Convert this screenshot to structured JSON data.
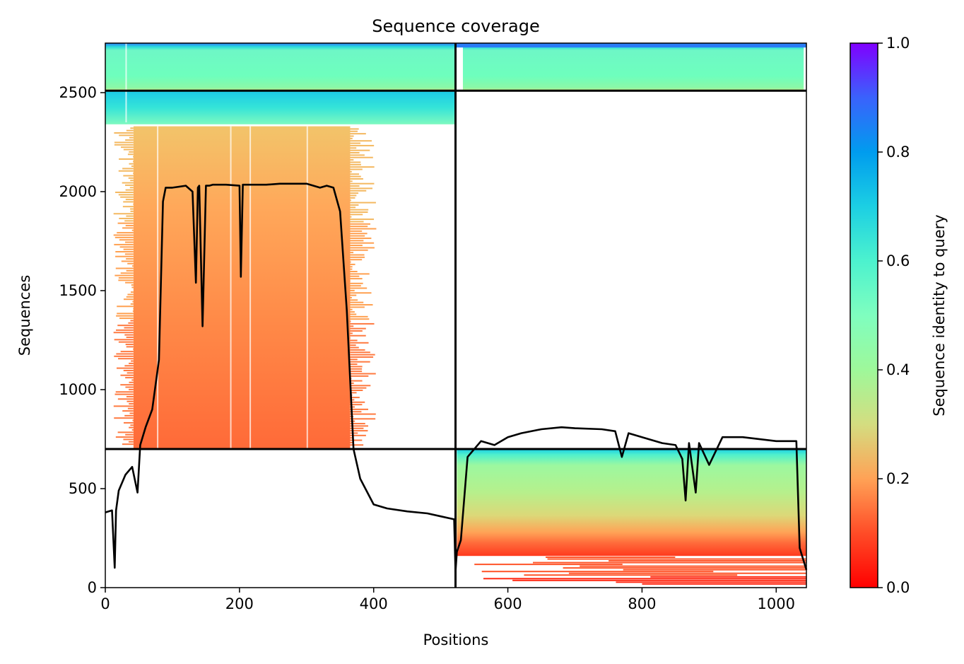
{
  "chart_data": {
    "type": "heatmap",
    "title": "Sequence coverage",
    "xlabel": "Positions",
    "ylabel": "Sequences",
    "xlim": [
      0,
      1045
    ],
    "ylim": [
      0,
      2750
    ],
    "x_ticks": [
      "0",
      "200",
      "400",
      "600",
      "800",
      "1000"
    ],
    "y_ticks": [
      "0",
      "500",
      "1000",
      "1500",
      "2000",
      "2500"
    ],
    "colorbar": {
      "label": "Sequence identity to query",
      "range": [
        0.0,
        1.0
      ],
      "ticks": [
        "0.0",
        "0.2",
        "0.4",
        "0.6",
        "0.8",
        "1.0"
      ],
      "colormap": "rainbow_r"
    },
    "grid": false,
    "chain_boundaries": {
      "x": [
        522
      ],
      "y": [
        700,
        2510
      ]
    },
    "blocks": [
      {
        "x": [
          0,
          522
        ],
        "y": [
          2510,
          2750
        ],
        "identity": 0.55,
        "note": "paired rows"
      },
      {
        "x": [
          522,
          1045
        ],
        "y": [
          2510,
          2750
        ],
        "identity": 0.55
      },
      {
        "x": [
          0,
          522
        ],
        "y": [
          2330,
          2510
        ],
        "identity": 0.7
      },
      {
        "x": [
          25,
          400
        ],
        "y": [
          700,
          2330
        ],
        "identity": 0.2
      },
      {
        "x": [
          522,
          1045
        ],
        "y": [
          0,
          700
        ],
        "identity": 0.4
      }
    ],
    "series": [
      {
        "line": "coverage",
        "color": "#000000",
        "x": [
          0,
          10,
          14,
          16,
          20,
          30,
          40,
          48,
          52,
          60,
          70,
          80,
          86,
          90,
          100,
          120,
          130,
          135,
          138,
          140,
          145,
          150,
          155,
          160,
          180,
          200,
          202,
          205,
          220,
          240,
          260,
          300,
          320,
          330,
          340,
          350,
          360,
          370,
          380,
          400,
          420,
          450,
          480,
          500,
          520,
          522,
          524,
          530,
          540,
          560,
          580,
          600,
          620,
          650,
          680,
          700,
          740,
          760,
          770,
          780,
          800,
          830,
          850,
          860,
          865,
          870,
          880,
          885,
          900,
          920,
          950,
          1000,
          1030,
          1035,
          1045
        ],
        "y": [
          380,
          390,
          100,
          390,
          490,
          570,
          610,
          480,
          720,
          810,
          900,
          1150,
          1950,
          2020,
          2020,
          2030,
          2000,
          1540,
          2020,
          2030,
          1320,
          2030,
          2030,
          2035,
          2035,
          2030,
          1570,
          2035,
          2035,
          2035,
          2040,
          2040,
          2020,
          2030,
          2020,
          1900,
          1400,
          700,
          550,
          420,
          400,
          385,
          375,
          360,
          345,
          80,
          180,
          240,
          660,
          740,
          720,
          760,
          780,
          800,
          810,
          805,
          800,
          790,
          660,
          780,
          760,
          730,
          720,
          650,
          440,
          730,
          480,
          730,
          620,
          760,
          760,
          740,
          740,
          200,
          90
        ]
      }
    ]
  }
}
